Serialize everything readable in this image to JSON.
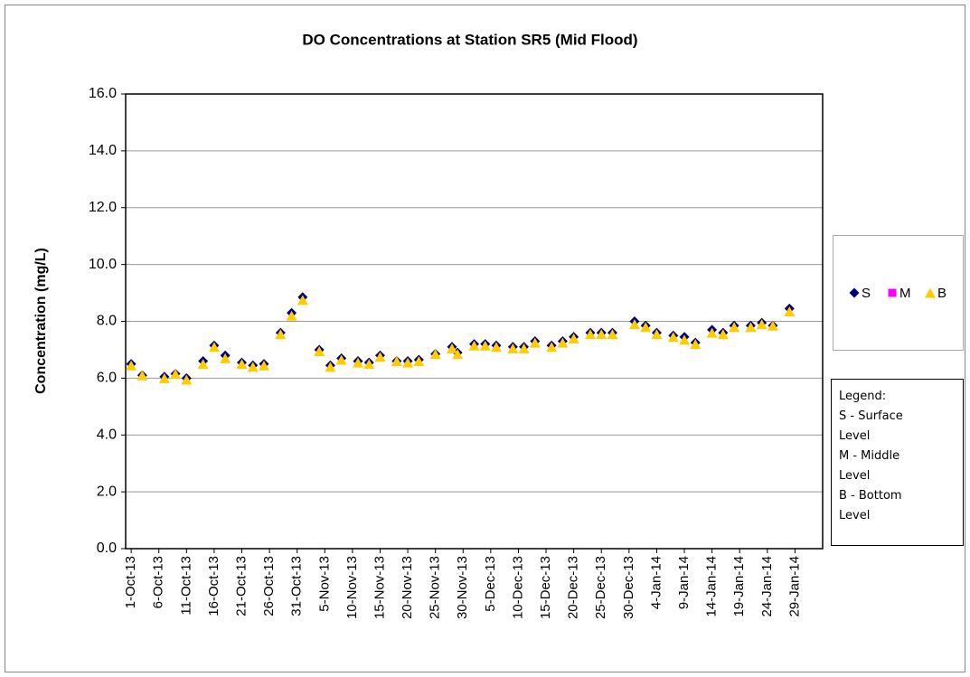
{
  "chart_data": {
    "type": "scatter",
    "title": "DO Concentrations at Station SR5 (Mid Flood)",
    "y_label": "Concentration (mg/L)",
    "x": [
      "2013-10-01",
      "2013-10-03",
      "2013-10-07",
      "2013-10-09",
      "2013-10-11",
      "2013-10-14",
      "2013-10-16",
      "2013-10-18",
      "2013-10-21",
      "2013-10-23",
      "2013-10-25",
      "2013-10-28",
      "2013-10-30",
      "2013-11-01",
      "2013-11-04",
      "2013-11-06",
      "2013-11-08",
      "2013-11-11",
      "2013-11-13",
      "2013-11-15",
      "2013-11-18",
      "2013-11-20",
      "2013-11-22",
      "2013-11-25",
      "2013-11-28",
      "2013-11-29",
      "2013-12-02",
      "2013-12-04",
      "2013-12-06",
      "2013-12-09",
      "2013-12-11",
      "2013-12-13",
      "2013-12-16",
      "2013-12-18",
      "2013-12-20",
      "2013-12-23",
      "2013-12-25",
      "2013-12-27",
      "2013-12-31",
      "2014-01-02",
      "2014-01-04",
      "2014-01-07",
      "2014-01-09",
      "2014-01-11",
      "2014-01-14",
      "2014-01-16",
      "2014-01-18",
      "2014-01-21",
      "2014-01-23",
      "2014-01-25",
      "2014-01-28"
    ],
    "series": [
      {
        "name": "S",
        "color": "#000080",
        "marker": "diamond",
        "values": [
          6.5,
          6.1,
          6.05,
          6.15,
          6.0,
          6.6,
          7.15,
          6.8,
          6.55,
          6.45,
          6.5,
          7.6,
          8.3,
          8.85,
          7.0,
          6.45,
          6.7,
          6.6,
          6.55,
          6.8,
          6.6,
          6.6,
          6.65,
          6.85,
          7.1,
          6.9,
          7.2,
          7.2,
          7.15,
          7.1,
          7.1,
          7.3,
          7.15,
          7.3,
          7.45,
          7.6,
          7.6,
          7.6,
          8.0,
          7.85,
          7.6,
          7.5,
          7.45,
          7.25,
          7.7,
          7.6,
          7.85,
          7.85,
          7.95,
          7.85,
          8.45
        ]
      },
      {
        "name": "M",
        "color": "#ff00ff",
        "marker": "square",
        "values": [
          null,
          null,
          null,
          null,
          null,
          null,
          null,
          null,
          null,
          null,
          null,
          null,
          null,
          null,
          null,
          null,
          null,
          null,
          null,
          null,
          null,
          null,
          null,
          null,
          null,
          null,
          null,
          null,
          null,
          null,
          null,
          null,
          null,
          null,
          null,
          null,
          null,
          null,
          null,
          null,
          null,
          null,
          null,
          null,
          null,
          null,
          null,
          null,
          null,
          null,
          null
        ]
      },
      {
        "name": "B",
        "color": "#ffcc00",
        "marker": "triangle",
        "values": [
          6.45,
          6.1,
          6.0,
          6.15,
          5.95,
          6.5,
          7.1,
          6.7,
          6.5,
          6.4,
          6.45,
          7.55,
          8.2,
          8.75,
          6.95,
          6.4,
          6.65,
          6.55,
          6.5,
          6.75,
          6.6,
          6.55,
          6.6,
          6.85,
          7.05,
          6.85,
          7.15,
          7.15,
          7.1,
          7.05,
          7.05,
          7.25,
          7.1,
          7.25,
          7.4,
          7.55,
          7.55,
          7.55,
          7.9,
          7.8,
          7.55,
          7.45,
          7.35,
          7.2,
          7.6,
          7.55,
          7.8,
          7.8,
          7.9,
          7.85,
          8.35
        ]
      }
    ],
    "xlim": [
      "2013-09-30",
      "2014-02-03"
    ],
    "xticks": [
      {
        "value": "2013-10-01",
        "label": "1-Oct-13"
      },
      {
        "value": "2013-10-06",
        "label": "6-Oct-13"
      },
      {
        "value": "2013-10-11",
        "label": "11-Oct-13"
      },
      {
        "value": "2013-10-16",
        "label": "16-Oct-13"
      },
      {
        "value": "2013-10-21",
        "label": "21-Oct-13"
      },
      {
        "value": "2013-10-26",
        "label": "26-Oct-13"
      },
      {
        "value": "2013-10-31",
        "label": "31-Oct-13"
      },
      {
        "value": "2013-11-05",
        "label": "5-Nov-13"
      },
      {
        "value": "2013-11-10",
        "label": "10-Nov-13"
      },
      {
        "value": "2013-11-15",
        "label": "15-Nov-13"
      },
      {
        "value": "2013-11-20",
        "label": "20-Nov-13"
      },
      {
        "value": "2013-11-25",
        "label": "25-Nov-13"
      },
      {
        "value": "2013-11-30",
        "label": "30-Nov-13"
      },
      {
        "value": "2013-12-05",
        "label": "5-Dec-13"
      },
      {
        "value": "2013-12-10",
        "label": "10-Dec-13"
      },
      {
        "value": "2013-12-15",
        "label": "15-Dec-13"
      },
      {
        "value": "2013-12-20",
        "label": "20-Dec-13"
      },
      {
        "value": "2013-12-25",
        "label": "25-Dec-13"
      },
      {
        "value": "2013-12-30",
        "label": "30-Dec-13"
      },
      {
        "value": "2014-01-04",
        "label": "4-Jan-14"
      },
      {
        "value": "2014-01-09",
        "label": "9-Jan-14"
      },
      {
        "value": "2014-01-14",
        "label": "14-Jan-14"
      },
      {
        "value": "2014-01-19",
        "label": "19-Jan-14"
      },
      {
        "value": "2014-01-24",
        "label": "24-Jan-14"
      },
      {
        "value": "2014-01-29",
        "label": "29-Jan-14"
      }
    ],
    "ylim": [
      0,
      16
    ],
    "yticks": [
      {
        "value": 0,
        "label": "0.0"
      },
      {
        "value": 2,
        "label": "2.0"
      },
      {
        "value": 4,
        "label": "4.0"
      },
      {
        "value": 6,
        "label": "6.0"
      },
      {
        "value": 8,
        "label": "8.0"
      },
      {
        "value": 10,
        "label": "10.0"
      },
      {
        "value": 12,
        "label": "12.0"
      },
      {
        "value": 14,
        "label": "14.0"
      },
      {
        "value": 16,
        "label": "16.0"
      }
    ],
    "grid": true,
    "legend_position": "right",
    "legend_note": [
      "Legend:",
      "S - Surface Level",
      "M - Middle Level",
      "B - Bottom Level"
    ]
  }
}
